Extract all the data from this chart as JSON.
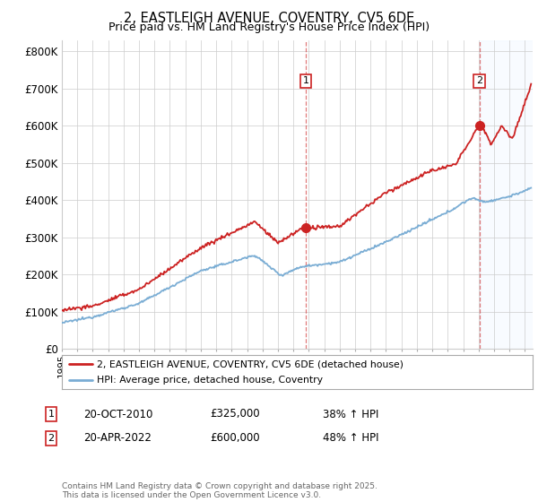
{
  "title": "2, EASTLEIGH AVENUE, COVENTRY, CV5 6DE",
  "subtitle": "Price paid vs. HM Land Registry's House Price Index (HPI)",
  "title_fontsize": 10.5,
  "subtitle_fontsize": 9,
  "ylabel_ticks": [
    "£0",
    "£100K",
    "£200K",
    "£300K",
    "£400K",
    "£500K",
    "£600K",
    "£700K",
    "£800K"
  ],
  "ytick_values": [
    0,
    100000,
    200000,
    300000,
    400000,
    500000,
    600000,
    700000,
    800000
  ],
  "ylim": [
    0,
    830000
  ],
  "xlim_start": 1995,
  "xlim_end": 2025.5,
  "xticks": [
    1995,
    1996,
    1997,
    1998,
    1999,
    2000,
    2001,
    2002,
    2003,
    2004,
    2005,
    2006,
    2007,
    2008,
    2009,
    2010,
    2011,
    2012,
    2013,
    2014,
    2015,
    2016,
    2017,
    2018,
    2019,
    2020,
    2021,
    2022,
    2023,
    2024,
    2025
  ],
  "red_color": "#cc2222",
  "blue_color": "#7aadd4",
  "shade_color": "#ddeeff",
  "vline1_color": "#cc2222",
  "vline2_color": "#cc2222",
  "legend_label_red": "2, EASTLEIGH AVENUE, COVENTRY, CV5 6DE (detached house)",
  "legend_label_blue": "HPI: Average price, detached house, Coventry",
  "transaction1_date": 2010.8,
  "transaction1_price": 325000,
  "transaction2_date": 2022.05,
  "transaction2_price": 600000,
  "table_row1": [
    "1",
    "20-OCT-2010",
    "£325,000",
    "38% ↑ HPI"
  ],
  "table_row2": [
    "2",
    "20-APR-2022",
    "£600,000",
    "48% ↑ HPI"
  ],
  "footer": "Contains HM Land Registry data © Crown copyright and database right 2025.\nThis data is licensed under the Open Government Licence v3.0.",
  "background_color": "#ffffff",
  "grid_color": "#cccccc"
}
